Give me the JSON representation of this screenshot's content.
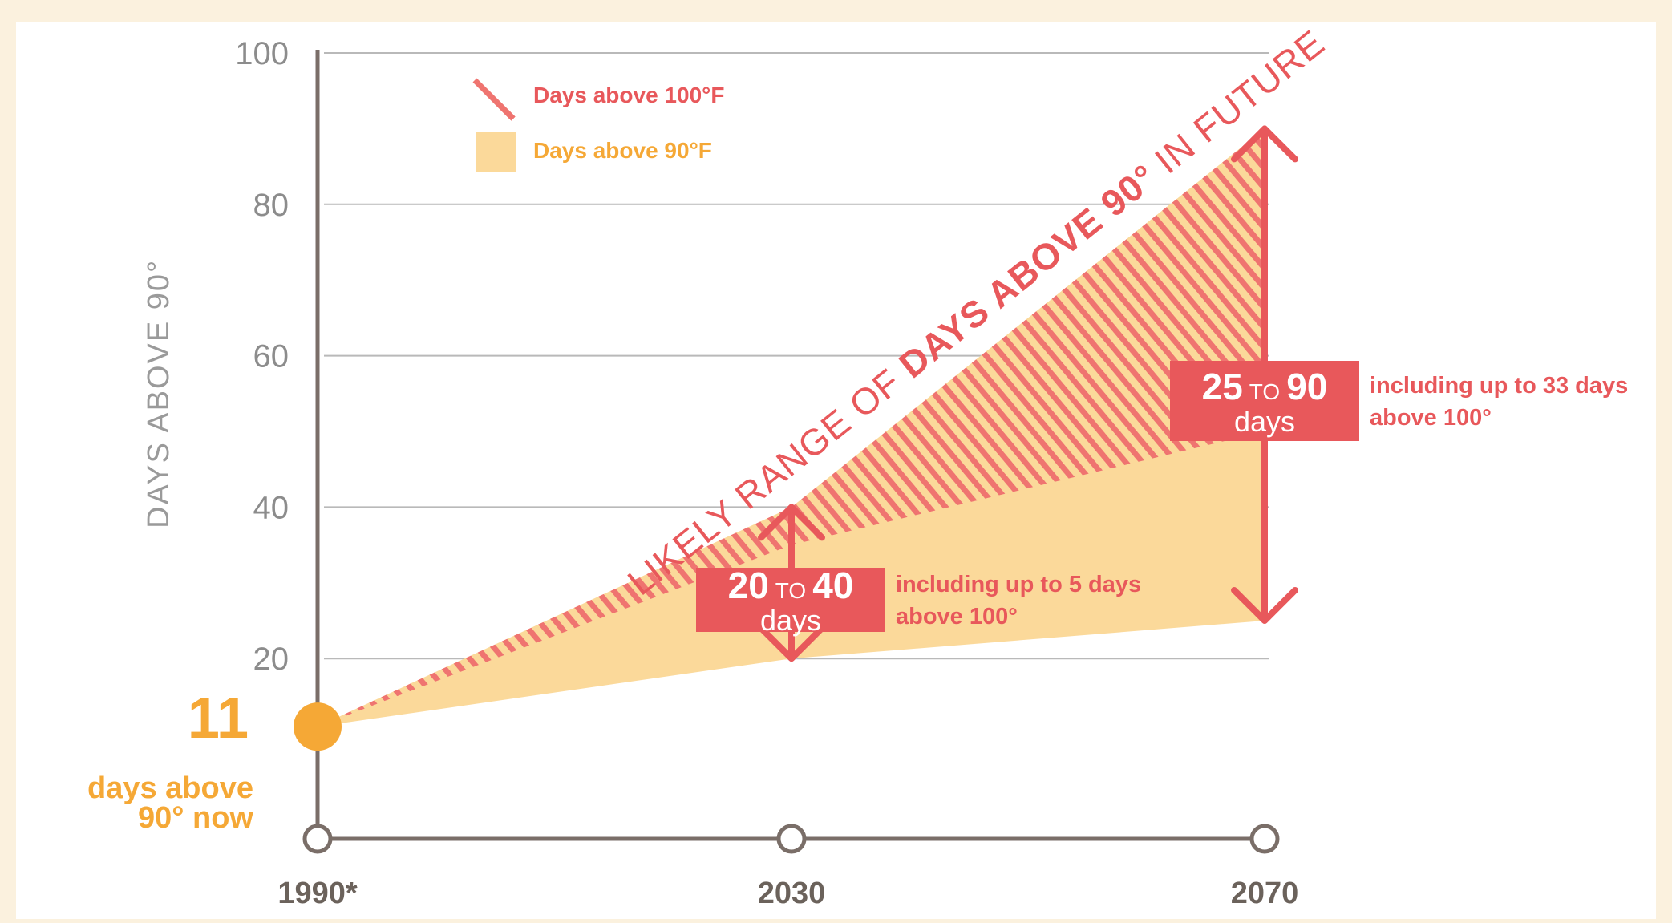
{
  "colors": {
    "page_background": "#fbf1de",
    "panel_background": "#ffffff",
    "range_fill": "#fbd99a",
    "hatch": "#ef7470",
    "accent_red": "#e8585b",
    "accent_orange": "#f5a836",
    "axis": "#7a6e68",
    "grid": "#b9b9b9"
  },
  "legend": {
    "hatch_label": "Days above 100°F",
    "fill_label": "Days above 90°F"
  },
  "band_label": {
    "prefix": "LIKELY RANGE OF ",
    "emphasis": "DAYS ABOVE 90°",
    "suffix": " IN FUTURE"
  },
  "current": {
    "value": "11",
    "line1": "days above",
    "line2": "90° now"
  },
  "ranges": [
    {
      "year": "2030",
      "low": "20",
      "to": "TO",
      "high": "40",
      "unit": "days",
      "note_line1": "including up to 5 days",
      "note_line2": "above 100°"
    },
    {
      "year": "2070",
      "low": "25",
      "to": "TO",
      "high": "90",
      "unit": "days",
      "note_line1": "including up to 33 days",
      "note_line2": "above 100°"
    }
  ],
  "chart_data": {
    "type": "area",
    "title": "",
    "xlabel": "",
    "ylabel": "DAYS ABOVE 90°",
    "x_categories": [
      "1990*",
      "2030",
      "2070"
    ],
    "x_values": [
      1990,
      2030,
      2070
    ],
    "yticks": [
      20,
      40,
      60,
      80,
      100
    ],
    "ylim": [
      0,
      100
    ],
    "grid": true,
    "legend_position": "top-left",
    "series": [
      {
        "name": "Days above 90°F",
        "style": "filled range",
        "lower": [
          11,
          20,
          25
        ],
        "upper": [
          11,
          40,
          90
        ]
      },
      {
        "name": "Days above 100°F",
        "style": "hatched band",
        "lower": [
          11,
          35,
          50
        ],
        "upper": [
          11,
          40,
          90
        ]
      }
    ],
    "current_value": {
      "x": 1990,
      "y": 11
    }
  }
}
